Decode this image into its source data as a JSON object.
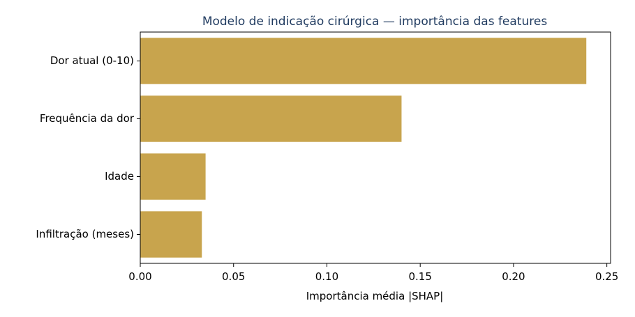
{
  "chart_data": {
    "type": "bar",
    "orientation": "horizontal",
    "title": "Modelo de indicação cirúrgica — importância das features",
    "xlabel": "Importância média |SHAP|",
    "ylabel": "",
    "categories": [
      "Dor atual (0-10)",
      "Frequência da dor",
      "Idade",
      "Infiltração (meses)"
    ],
    "values": [
      0.239,
      0.14,
      0.035,
      0.033
    ],
    "xlim": [
      0,
      0.252
    ],
    "xticks": [
      0.0,
      0.05,
      0.1,
      0.15,
      0.2,
      0.25
    ],
    "xtick_labels": [
      "0.00",
      "0.05",
      "0.10",
      "0.15",
      "0.20",
      "0.25"
    ],
    "grid": false,
    "bar_color": "#c8a44d",
    "title_color": "#1f3a5f"
  }
}
